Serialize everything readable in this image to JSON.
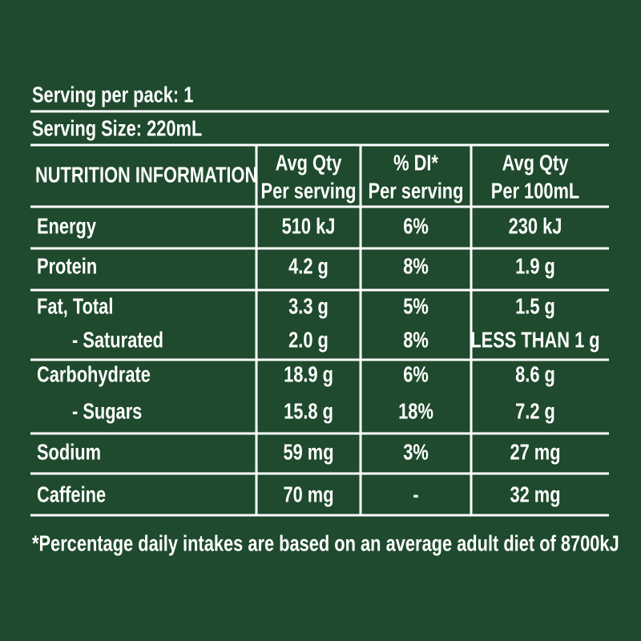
{
  "serving_per_pack": "Serving per pack: 1",
  "serving_size": "Serving Size: 220mL",
  "table": {
    "header": [
      [
        "NUTRITION INFORMATION"
      ],
      [
        "Avg Qty",
        "Per serving"
      ],
      [
        "% DI*",
        "Per serving"
      ],
      [
        "Avg Qty",
        "Per 100mL"
      ]
    ],
    "rows": [
      [
        "Energy",
        "510 kJ",
        "6%",
        "230 kJ"
      ],
      [
        "Protein",
        "4.2 g",
        "8%",
        "1.9 g"
      ],
      [
        "Fat, Total",
        "3.3 g",
        "5%",
        "1.5 g"
      ],
      [
        "- Saturated",
        "2.0 g",
        "8%",
        "LESS THAN 1 g"
      ],
      [
        "Carbohydrate",
        "18.9 g",
        "6%",
        "8.6 g"
      ],
      [
        "- Sugars",
        "15.8 g",
        "18%",
        "7.2 g"
      ],
      [
        "Sodium",
        "59 mg",
        "3%",
        "27 mg"
      ],
      [
        "Caffeine",
        "70 mg",
        "-",
        "32 mg"
      ]
    ]
  },
  "footnote": "*Percentage daily intakes are based on an average adult diet of 8700kJ"
}
